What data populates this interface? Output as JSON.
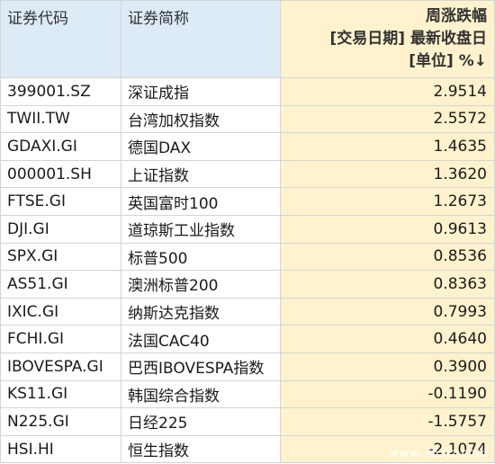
{
  "headers": {
    "code": "证券代码",
    "name": "证券简称",
    "change_line1": "周涨跌幅",
    "change_line2": "[交易日期] 最新收盘日",
    "change_line3": "[单位] %↓"
  },
  "rows": [
    {
      "code": "399001.SZ",
      "name": "深证成指",
      "value": "2.9514"
    },
    {
      "code": "TWII.TW",
      "name": "台湾加权指数",
      "value": "2.5572"
    },
    {
      "code": "GDAXI.GI",
      "name": "德国DAX",
      "value": "1.4635"
    },
    {
      "code": "000001.SH",
      "name": "上证指数",
      "value": "1.3620"
    },
    {
      "code": "FTSE.GI",
      "name": "英国富时100",
      "value": "1.2673"
    },
    {
      "code": "DJI.GI",
      "name": "道琼斯工业指数",
      "value": "0.9613"
    },
    {
      "code": "SPX.GI",
      "name": "标普500",
      "value": "0.8536"
    },
    {
      "code": "AS51.GI",
      "name": "澳洲标普200",
      "value": "0.8363"
    },
    {
      "code": "IXIC.GI",
      "name": "纳斯达克指数",
      "value": "0.7993"
    },
    {
      "code": "FCHI.GI",
      "name": "法国CAC40",
      "value": "0.4640"
    },
    {
      "code": "IBOVESPA.GI",
      "name": "巴西IBOVESPA指数",
      "value": "0.3900"
    },
    {
      "code": "KS11.GI",
      "name": "韩国综合指数",
      "value": "-0.1190"
    },
    {
      "code": "N225.GI",
      "name": "日经225",
      "value": "-1.5757"
    },
    {
      "code": "HSI.HI",
      "name": "恒生指数",
      "value": "-2.1074"
    }
  ],
  "watermark": "www.365jz.com"
}
